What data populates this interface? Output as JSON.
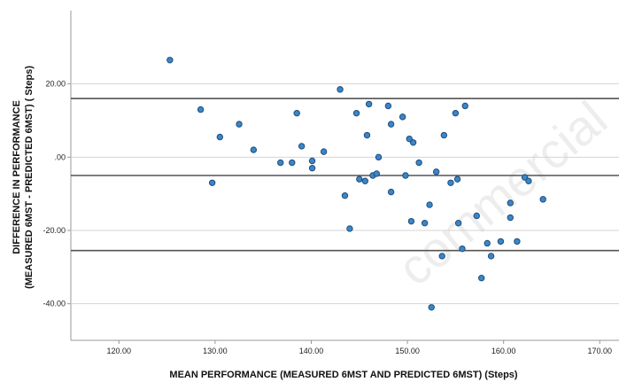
{
  "chart_data": {
    "type": "scatter",
    "title": "",
    "xlabel": "MEAN PERFORMANCE (MEASURED 6MST AND PREDICTED 6MST) (Steps)",
    "ylabel_line1": "DIFFERENCE IN PERFORMANCE",
    "ylabel_line2": "(MEASURED 6MST - PREDICTED 6MST) ( Steps)",
    "watermark": "commercial",
    "xlim": [
      115,
      172
    ],
    "ylim": [
      -50,
      40
    ],
    "x_ticks": [
      120,
      130,
      140,
      150,
      160,
      170
    ],
    "x_tick_labels": [
      "120.00",
      "130.00",
      "140.00",
      "150.00",
      "160.00",
      "170.00"
    ],
    "y_ticks": [
      20,
      0,
      -20,
      -40
    ],
    "y_tick_labels": [
      "20.00",
      ".00",
      "-20.00",
      "-40.00"
    ],
    "grid": "horizontal",
    "reference_lines": [
      16,
      -5,
      -25.5
    ],
    "colors": {
      "point_fill": "#3a86c8",
      "point_stroke": "#1f4d7a",
      "line": "#555555",
      "grid": "#d4d4d4"
    },
    "points": [
      {
        "x": 125.3,
        "y": 26.5
      },
      {
        "x": 128.5,
        "y": 13
      },
      {
        "x": 129.7,
        "y": -7
      },
      {
        "x": 130.5,
        "y": 5.5
      },
      {
        "x": 132.5,
        "y": 9
      },
      {
        "x": 134,
        "y": 2
      },
      {
        "x": 136.8,
        "y": -1.5
      },
      {
        "x": 138,
        "y": -1.5
      },
      {
        "x": 138.5,
        "y": 12
      },
      {
        "x": 139,
        "y": 3
      },
      {
        "x": 140.1,
        "y": -1
      },
      {
        "x": 140.1,
        "y": -3
      },
      {
        "x": 141.3,
        "y": 1.5
      },
      {
        "x": 143,
        "y": 18.5
      },
      {
        "x": 143.5,
        "y": -10.5
      },
      {
        "x": 144,
        "y": -19.5
      },
      {
        "x": 144.7,
        "y": 12
      },
      {
        "x": 145,
        "y": -6
      },
      {
        "x": 145.8,
        "y": 6
      },
      {
        "x": 145.6,
        "y": -6.5
      },
      {
        "x": 146,
        "y": 14.5
      },
      {
        "x": 146.4,
        "y": -5
      },
      {
        "x": 146.8,
        "y": -4.5
      },
      {
        "x": 147,
        "y": 0
      },
      {
        "x": 148,
        "y": 14
      },
      {
        "x": 148.3,
        "y": 9
      },
      {
        "x": 148.3,
        "y": -9.5
      },
      {
        "x": 149.5,
        "y": 11
      },
      {
        "x": 149.8,
        "y": -5
      },
      {
        "x": 150.2,
        "y": 5
      },
      {
        "x": 150.4,
        "y": -17.5
      },
      {
        "x": 150.6,
        "y": 4
      },
      {
        "x": 151.2,
        "y": -1.5
      },
      {
        "x": 151.8,
        "y": -18
      },
      {
        "x": 152.3,
        "y": -13
      },
      {
        "x": 152.5,
        "y": -41
      },
      {
        "x": 153,
        "y": -4
      },
      {
        "x": 153.6,
        "y": -27
      },
      {
        "x": 153.8,
        "y": 6
      },
      {
        "x": 154.5,
        "y": -7
      },
      {
        "x": 155,
        "y": 12
      },
      {
        "x": 155.2,
        "y": -6
      },
      {
        "x": 155.3,
        "y": -18
      },
      {
        "x": 155.7,
        "y": -25
      },
      {
        "x": 156,
        "y": 14
      },
      {
        "x": 157.2,
        "y": -16
      },
      {
        "x": 157.7,
        "y": -33
      },
      {
        "x": 158.3,
        "y": -23.5
      },
      {
        "x": 158.7,
        "y": -27
      },
      {
        "x": 159.7,
        "y": -23
      },
      {
        "x": 160.7,
        "y": -12.5
      },
      {
        "x": 160.7,
        "y": -16.5
      },
      {
        "x": 161.4,
        "y": -23
      },
      {
        "x": 162.2,
        "y": -5.5
      },
      {
        "x": 162.6,
        "y": -6.5
      },
      {
        "x": 164.1,
        "y": -11.5
      }
    ]
  }
}
